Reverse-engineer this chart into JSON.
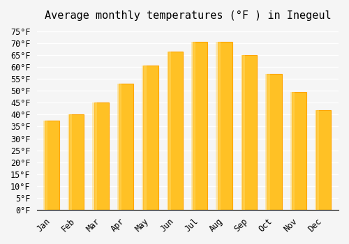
{
  "title": "Average monthly temperatures (°F ) in Inegeul",
  "months": [
    "Jan",
    "Feb",
    "Mar",
    "Apr",
    "May",
    "Jun",
    "Jul",
    "Aug",
    "Sep",
    "Oct",
    "Nov",
    "Dec"
  ],
  "values": [
    37.5,
    40.0,
    45.0,
    53.0,
    60.5,
    66.5,
    70.5,
    70.5,
    65.0,
    57.0,
    49.5,
    42.0
  ],
  "bar_color_face": "#FFC125",
  "bar_color_edge": "#FFA500",
  "ylim": [
    0,
    77
  ],
  "yticks": [
    0,
    5,
    10,
    15,
    20,
    25,
    30,
    35,
    40,
    45,
    50,
    55,
    60,
    65,
    70,
    75
  ],
  "background_color": "#f5f5f5",
  "grid_color": "#ffffff",
  "title_fontsize": 11,
  "tick_fontsize": 8.5,
  "font_family": "monospace"
}
